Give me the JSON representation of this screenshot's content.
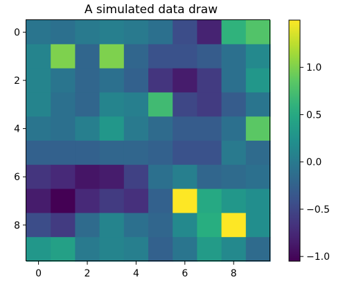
{
  "chart_data": {
    "type": "heatmap",
    "title": "A simulated data draw",
    "xlabel": "",
    "ylabel": "",
    "rows": 10,
    "cols": 10,
    "x_ticks": [
      0,
      2,
      4,
      6,
      8
    ],
    "y_ticks": [
      0,
      2,
      4,
      6,
      8
    ],
    "colormap": "viridis",
    "vmin": -1.05,
    "vmax": 1.5,
    "colorbar_ticks": [
      -1.0,
      -0.5,
      0.0,
      0.5,
      1.0
    ],
    "colorbar_tick_labels": [
      "−1.0",
      "−0.5",
      "0.0",
      "0.5",
      "1.0"
    ],
    "values": [
      [
        -0.05,
        -0.1,
        0.0,
        0.05,
        0.0,
        -0.1,
        -0.45,
        -0.8,
        0.6,
        0.8
      ],
      [
        0.1,
        1.0,
        -0.2,
        1.0,
        -0.2,
        -0.4,
        -0.4,
        -0.3,
        -0.1,
        0.15
      ],
      [
        0.1,
        -0.05,
        -0.2,
        -0.1,
        -0.25,
        -0.65,
        -0.85,
        -0.6,
        -0.1,
        0.3
      ],
      [
        0.1,
        -0.1,
        -0.2,
        0.1,
        0.05,
        0.7,
        -0.5,
        -0.6,
        -0.3,
        -0.05
      ],
      [
        -0.05,
        -0.1,
        0.05,
        0.3,
        0.0,
        -0.15,
        -0.3,
        -0.3,
        -0.1,
        0.85
      ],
      [
        -0.25,
        -0.25,
        -0.25,
        -0.2,
        -0.2,
        -0.25,
        -0.4,
        -0.4,
        0.0,
        -0.15
      ],
      [
        -0.65,
        -0.75,
        -0.9,
        -0.85,
        -0.55,
        -0.1,
        0.05,
        -0.2,
        -0.15,
        -0.1
      ],
      [
        -0.85,
        -1.05,
        -0.75,
        -0.6,
        -0.7,
        -0.25,
        1.5,
        0.5,
        0.3,
        0.2
      ],
      [
        -0.45,
        -0.6,
        -0.15,
        0.1,
        -0.1,
        -0.2,
        0.15,
        0.55,
        1.5,
        0.2
      ],
      [
        0.3,
        0.4,
        0.0,
        0.1,
        0.05,
        -0.25,
        -0.05,
        0.35,
        0.15,
        -0.15
      ]
    ]
  }
}
